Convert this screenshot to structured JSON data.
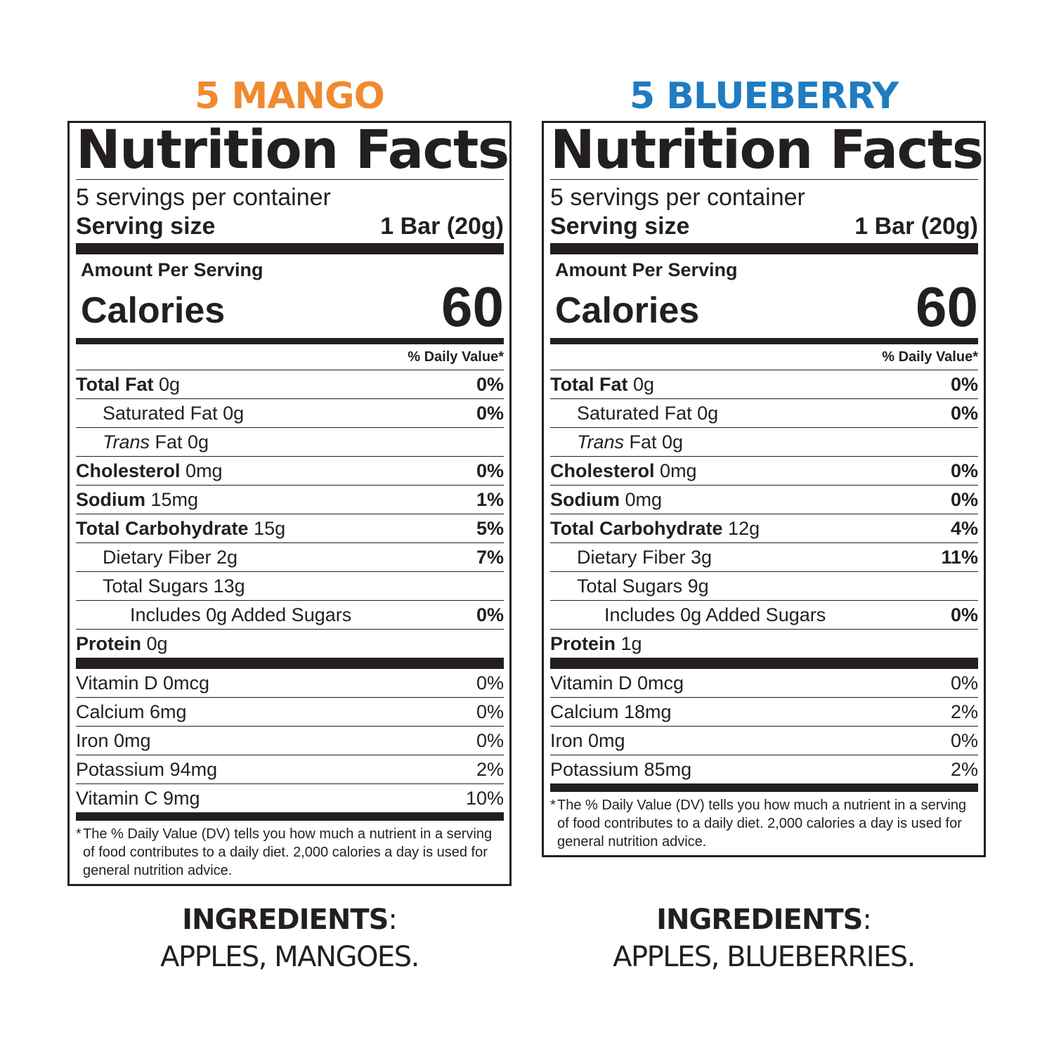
{
  "products": [
    {
      "title": "5 MANGO",
      "title_color": "#f08a2e",
      "label": {
        "heading": "Nutrition Facts",
        "servings": "5 servings per container",
        "serving_size_label": "Serving size",
        "serving_size_value": "1 Bar (20g)",
        "amount_per_serving": "Amount Per Serving",
        "calories_label": "Calories",
        "calories_value": "60",
        "dv_header": "% Daily Value*",
        "nutrients": [
          {
            "name": "Total Fat",
            "amount": "0g",
            "dv": "0%"
          },
          {
            "name": "Saturated Fat 0g",
            "dv": "0%"
          },
          {
            "name_italic": "Trans",
            "name": "Fat 0g",
            "dv": ""
          },
          {
            "name": "Cholesterol",
            "amount": "0mg",
            "dv": "0%"
          },
          {
            "name": "Sodium",
            "amount": "15mg",
            "dv": "1%"
          },
          {
            "name": "Total Carbohydrate",
            "amount": "15g",
            "dv": "5%"
          },
          {
            "name": "Dietary Fiber 2g",
            "dv": "7%"
          },
          {
            "name": "Total Sugars 13g",
            "dv": ""
          },
          {
            "name": "Includes 0g Added Sugars",
            "dv": "0%"
          },
          {
            "name": "Protein",
            "amount": "0g",
            "dv": ""
          }
        ],
        "vitamins": [
          {
            "name": "Vitamin D 0mcg",
            "dv": "0%"
          },
          {
            "name": "Calcium 6mg",
            "dv": "0%"
          },
          {
            "name": "Iron 0mg",
            "dv": "0%"
          },
          {
            "name": "Potassium 94mg",
            "dv": "2%"
          },
          {
            "name": "Vitamin C 9mg",
            "dv": "10%"
          }
        ],
        "footnote_star": "*",
        "footnote": "The % Daily Value (DV) tells you how much a nutrient in a serving of food contributes to a daily diet. 2,000 calories a day is used for general nutrition advice."
      },
      "ingredients_heading": "INGREDIENTS",
      "ingredients_colon": ":",
      "ingredients_list": "APPLES, MANGOES."
    },
    {
      "title": "5 BLUEBERRY",
      "title_color": "#1f7cc0",
      "label": {
        "heading": "Nutrition Facts",
        "servings": "5 servings per container",
        "serving_size_label": "Serving size",
        "serving_size_value": "1 Bar (20g)",
        "amount_per_serving": "Amount Per Serving",
        "calories_label": "Calories",
        "calories_value": "60",
        "dv_header": "% Daily Value*",
        "nutrients": [
          {
            "name": "Total Fat",
            "amount": "0g",
            "dv": "0%"
          },
          {
            "name": "Saturated Fat 0g",
            "dv": "0%"
          },
          {
            "name_italic": "Trans",
            "name": "Fat 0g",
            "dv": ""
          },
          {
            "name": "Cholesterol",
            "amount": "0mg",
            "dv": "0%"
          },
          {
            "name": "Sodium",
            "amount": "0mg",
            "dv": "0%"
          },
          {
            "name": "Total Carbohydrate",
            "amount": "12g",
            "dv": "4%"
          },
          {
            "name": "Dietary Fiber 3g",
            "dv": "11%"
          },
          {
            "name": "Total Sugars 9g",
            "dv": ""
          },
          {
            "name": "Includes 0g Added Sugars",
            "dv": "0%"
          },
          {
            "name": "Protein",
            "amount": "1g",
            "dv": ""
          }
        ],
        "vitamins": [
          {
            "name": "Vitamin D 0mcg",
            "dv": "0%"
          },
          {
            "name": "Calcium 18mg",
            "dv": "2%"
          },
          {
            "name": "Iron 0mg",
            "dv": "0%"
          },
          {
            "name": "Potassium 85mg",
            "dv": "2%"
          }
        ],
        "footnote_star": "*",
        "footnote": "The % Daily Value (DV) tells you how much a nutrient in a serving of food contributes to a daily diet. 2,000 calories a day is used for general nutrition advice."
      },
      "ingredients_heading": "INGREDIENTS",
      "ingredients_colon": ":",
      "ingredients_list": "APPLES, BLUEBERRIES."
    }
  ]
}
